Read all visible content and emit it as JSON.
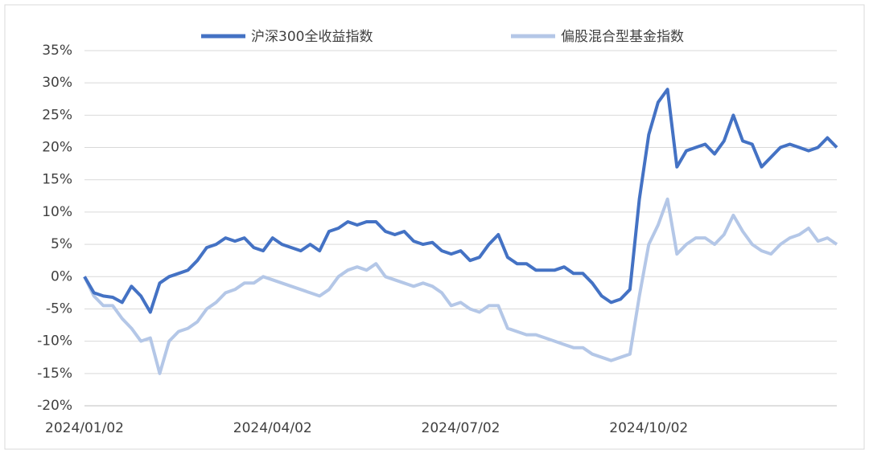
{
  "chart_data": {
    "type": "line",
    "categories": [
      "2024/01/02",
      null,
      null,
      null,
      null,
      null,
      null,
      null,
      null,
      null,
      null,
      null,
      null,
      null,
      null,
      null,
      null,
      null,
      null,
      null,
      "2024/04/02",
      null,
      null,
      null,
      null,
      null,
      null,
      null,
      null,
      null,
      null,
      null,
      null,
      null,
      null,
      null,
      null,
      null,
      null,
      null,
      "2024/07/02",
      null,
      null,
      null,
      null,
      null,
      null,
      null,
      null,
      null,
      null,
      null,
      null,
      null,
      null,
      null,
      null,
      null,
      null,
      null,
      "2024/10/02",
      null,
      null,
      null,
      null,
      null,
      null,
      null,
      null,
      null,
      null,
      null,
      null,
      null,
      null,
      null,
      null,
      null,
      null,
      null,
      null
    ],
    "series": [
      {
        "name": "沪深300全收益指数",
        "color": "#4472c4",
        "values": [
          0,
          -2.5,
          -3,
          -3.2,
          -4,
          -1.5,
          -3,
          -5.5,
          -1,
          0,
          0.5,
          1,
          2.5,
          4.5,
          5,
          6,
          5.5,
          6,
          4.5,
          4,
          6,
          5,
          4.5,
          4,
          5,
          4,
          7,
          7.5,
          8.5,
          8,
          8.5,
          8.5,
          7,
          6.5,
          7,
          5.5,
          5,
          5.3,
          4,
          3.5,
          4,
          2.5,
          3,
          5,
          6.5,
          3,
          2,
          2,
          1,
          1,
          1,
          1.5,
          0.5,
          0.5,
          -1,
          -3,
          -4,
          -3.5,
          -2,
          12,
          22,
          27,
          29,
          17,
          19.5,
          20,
          20.5,
          19,
          21,
          25,
          21,
          20.5,
          17,
          18.5,
          20,
          20.5,
          20,
          19.5,
          20,
          21.5,
          20
        ]
      },
      {
        "name": "偏股混合型基金指数",
        "color": "#b4c7e7",
        "values": [
          0,
          -3,
          -4.5,
          -4.5,
          -6.5,
          -8,
          -10,
          -9.5,
          -15,
          -10,
          -8.5,
          -8,
          -7,
          -5,
          -4,
          -2.5,
          -2,
          -1,
          -1,
          0,
          -0.5,
          -1,
          -1.5,
          -2,
          -2.5,
          -3,
          -2,
          0,
          1,
          1.5,
          1,
          2,
          0,
          -0.5,
          -1,
          -1.5,
          -1,
          -1.5,
          -2.5,
          -4.5,
          -4,
          -5,
          -5.5,
          -4.5,
          -4.5,
          -8,
          -8.5,
          -9,
          -9,
          -9.5,
          -10,
          -10.5,
          -11,
          -11,
          -12,
          -12.5,
          -13,
          -12.5,
          -12,
          -3,
          5,
          8,
          12,
          3.5,
          5,
          6,
          6,
          5,
          6.5,
          9.5,
          7,
          5,
          4,
          3.5,
          5,
          6,
          6.5,
          7.5,
          5.5,
          6,
          5
        ]
      }
    ],
    "ylim": [
      -20,
      35
    ],
    "yticks": [
      {
        "value": -20,
        "label": "-20%"
      },
      {
        "value": -15,
        "label": "-15%"
      },
      {
        "value": -10,
        "label": "-10%"
      },
      {
        "value": -5,
        "label": "-5%"
      },
      {
        "value": 0,
        "label": "0%"
      },
      {
        "value": 5,
        "label": "5%"
      },
      {
        "value": 10,
        "label": "10%"
      },
      {
        "value": 15,
        "label": "15%"
      },
      {
        "value": 20,
        "label": "20%"
      },
      {
        "value": 25,
        "label": "25%"
      },
      {
        "value": 30,
        "label": "30%"
      },
      {
        "value": 35,
        "label": "35%"
      }
    ],
    "grid": true,
    "legend": "top"
  }
}
